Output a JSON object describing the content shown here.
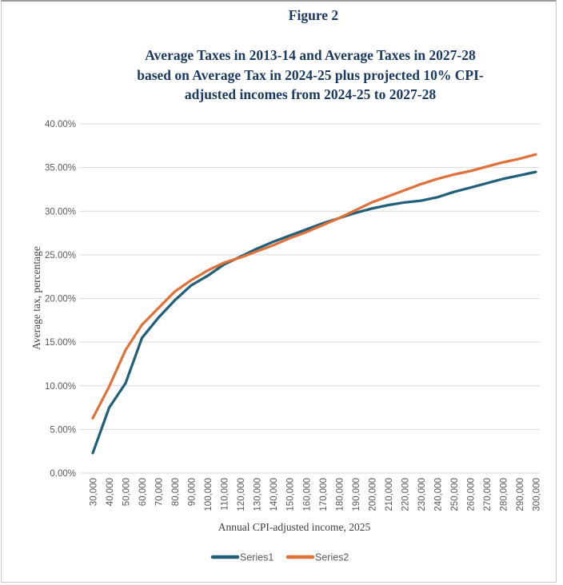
{
  "figure": {
    "label": "Figure 2",
    "title_lines": [
      "Average Taxes in 2013-14 and Average Taxes in 2027-28",
      "based on Average Tax in 2024-25 plus projected 10% CPI-",
      "adjusted incomes from 2024-25 to 2027-28"
    ],
    "title_color": "#1b3a63"
  },
  "chart_data": {
    "type": "line",
    "title": "Average Taxes in 2013-14 and Average Taxes in 2027-28 based on Average Tax in 2024-25 plus projected 10% CPI-adjusted incomes from 2024-25 to 2027-28",
    "xlabel": "Annual CPI-adjusted income, 2025",
    "ylabel": "Average tax, percentage",
    "ylim": [
      0,
      40
    ],
    "y_tick_step": 5,
    "y_tick_labels": [
      "0.00%",
      "5.00%",
      "10.00%",
      "15.00%",
      "20.00%",
      "25.00%",
      "30.00%",
      "35.00%",
      "40.00%"
    ],
    "grid": "horizontal",
    "grid_color": "#d9d9d9",
    "tick_label_color": "#595959",
    "legend_position": "bottom",
    "categories": [
      "30,000",
      "40,000",
      "50,000",
      "60,000",
      "70,000",
      "80,000",
      "90,000",
      "100,000",
      "110,000",
      "120,000",
      "130,000",
      "140,000",
      "150,000",
      "160,000",
      "170,000",
      "180,000",
      "190,000",
      "200,000",
      "210,000",
      "220,000",
      "230,000",
      "240,000",
      "250,000",
      "260,000",
      "270,000",
      "280,000",
      "290,000",
      "300,000"
    ],
    "series": [
      {
        "name": "Series1",
        "color": "#216078",
        "values": [
          2.3,
          7.5,
          10.3,
          15.5,
          17.8,
          19.8,
          21.5,
          22.6,
          23.9,
          24.8,
          25.7,
          26.5,
          27.2,
          27.9,
          28.6,
          29.2,
          29.8,
          30.3,
          30.7,
          31.0,
          31.2,
          31.6,
          32.2,
          32.7,
          33.2,
          33.7,
          34.1,
          34.5
        ]
      },
      {
        "name": "Series2",
        "color": "#e0713a",
        "values": [
          6.3,
          9.9,
          14.1,
          17.0,
          18.9,
          20.8,
          22.1,
          23.2,
          24.1,
          24.7,
          25.4,
          26.1,
          26.9,
          27.6,
          28.4,
          29.2,
          30.1,
          31.0,
          31.7,
          32.4,
          33.1,
          33.7,
          34.2,
          34.6,
          35.1,
          35.6,
          36.0,
          36.5
        ]
      }
    ]
  }
}
